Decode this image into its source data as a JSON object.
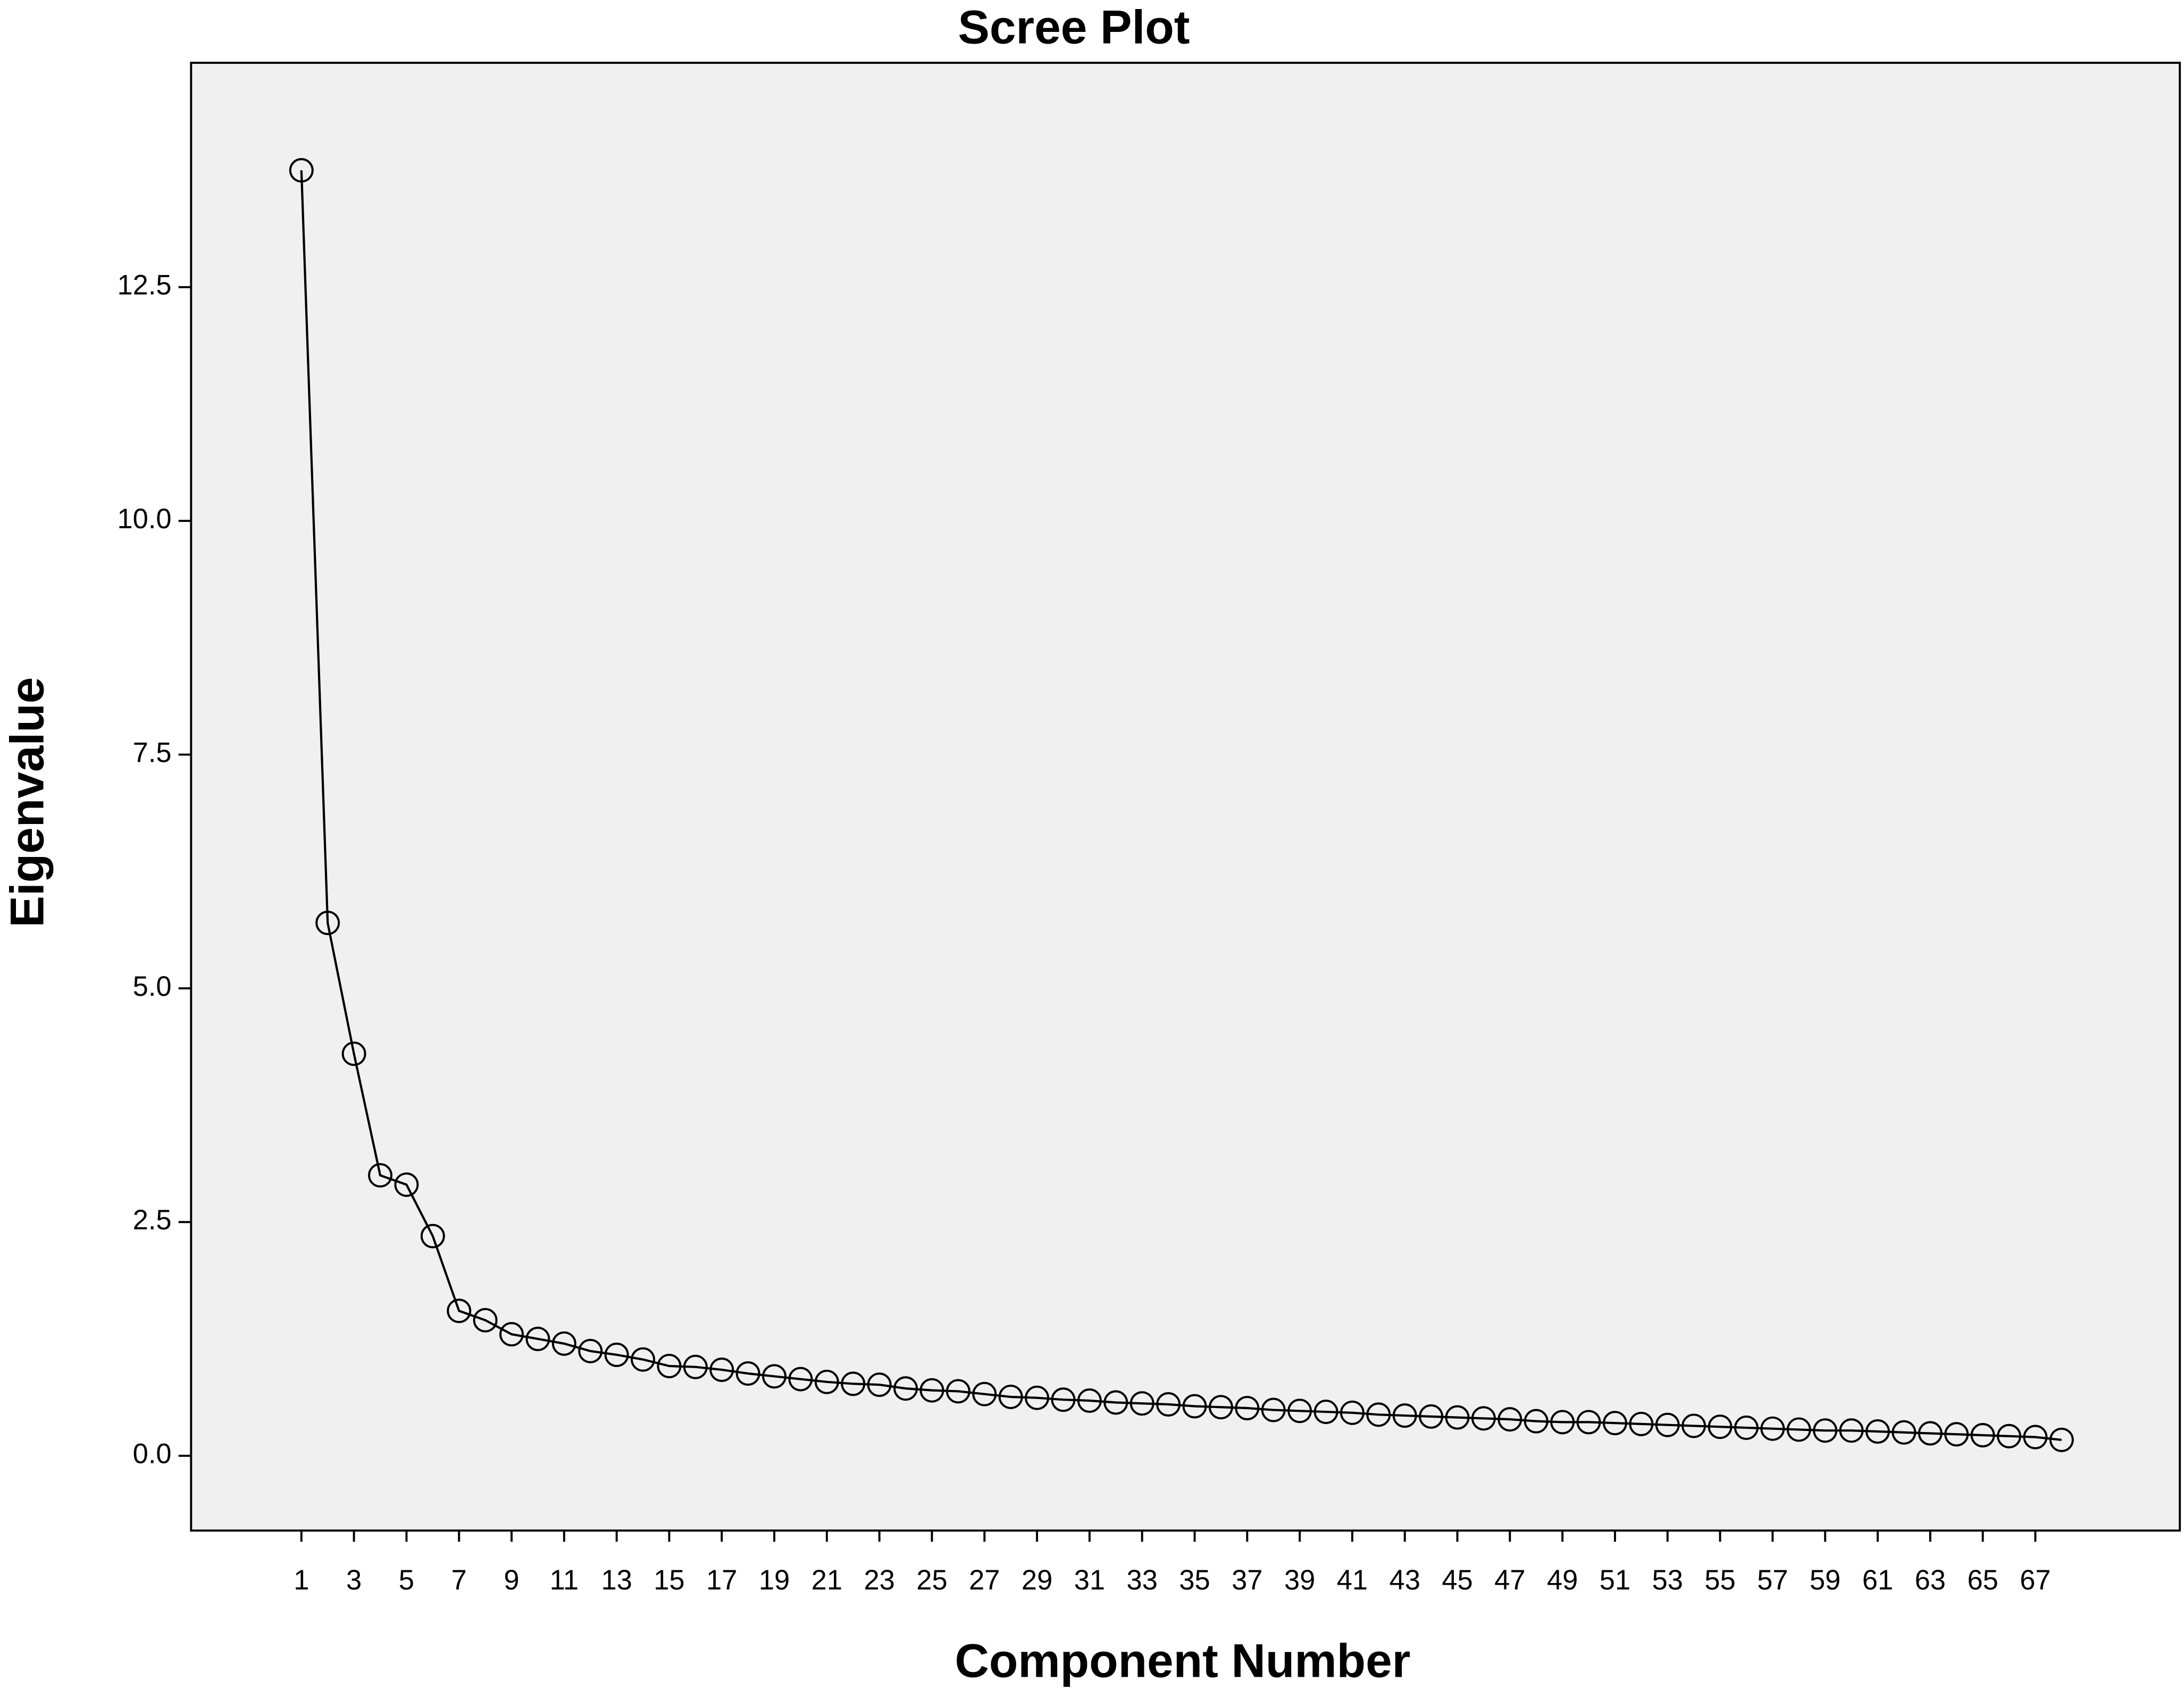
{
  "chart_data": {
    "type": "line",
    "title": "Scree Plot",
    "x_label": "Component Number",
    "y_label": "Eigenvalue",
    "x": [
      1,
      2,
      3,
      4,
      5,
      6,
      7,
      8,
      9,
      10,
      11,
      12,
      13,
      14,
      15,
      16,
      17,
      18,
      19,
      20,
      21,
      22,
      23,
      24,
      25,
      26,
      27,
      28,
      29,
      30,
      31,
      32,
      33,
      34,
      35,
      36,
      37,
      38,
      39,
      40,
      41,
      42,
      43,
      44,
      45,
      46,
      47,
      48,
      49,
      50,
      51,
      52,
      53,
      54,
      55,
      56,
      57,
      58,
      59,
      60,
      61,
      62,
      63,
      64,
      65,
      66,
      67,
      68
    ],
    "values": [
      13.75,
      5.7,
      4.3,
      3.0,
      2.9,
      2.35,
      1.55,
      1.45,
      1.3,
      1.25,
      1.2,
      1.12,
      1.08,
      1.03,
      0.96,
      0.95,
      0.92,
      0.88,
      0.85,
      0.82,
      0.79,
      0.77,
      0.76,
      0.72,
      0.7,
      0.69,
      0.66,
      0.63,
      0.62,
      0.6,
      0.59,
      0.57,
      0.56,
      0.55,
      0.53,
      0.52,
      0.51,
      0.49,
      0.48,
      0.47,
      0.46,
      0.44,
      0.43,
      0.42,
      0.41,
      0.4,
      0.39,
      0.37,
      0.36,
      0.36,
      0.35,
      0.34,
      0.33,
      0.32,
      0.31,
      0.3,
      0.29,
      0.28,
      0.27,
      0.27,
      0.26,
      0.25,
      0.24,
      0.23,
      0.22,
      0.21,
      0.2,
      0.17
    ],
    "color": "#000000",
    "xlim": [
      -3.2,
      72.5
    ],
    "xticks": [
      1,
      3,
      5,
      7,
      9,
      11,
      13,
      15,
      17,
      19,
      21,
      23,
      25,
      27,
      29,
      31,
      33,
      35,
      37,
      39,
      41,
      43,
      45,
      47,
      49,
      51,
      53,
      55,
      57,
      59,
      61,
      63,
      65,
      67
    ],
    "ylim": [
      -0.8,
      14.9
    ],
    "yticks": [
      {
        "value": 0,
        "label": "0.0"
      },
      2.5,
      {
        "value": 5,
        "label": "5.0"
      },
      7.5,
      {
        "value": 10,
        "label": "10.0"
      },
      12.5
    ],
    "grid": false
  }
}
